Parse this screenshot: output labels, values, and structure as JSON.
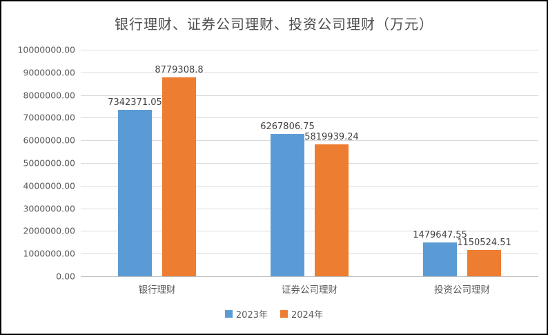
{
  "chart_data": {
    "type": "bar",
    "title": "银行理财、证券公司理财、投资公司理财（万元）",
    "categories": [
      "银行理财",
      "证券公司理财",
      "投资公司理财"
    ],
    "series": [
      {
        "name": "2023年",
        "color": "#5B9BD5",
        "values": [
          7342371.05,
          6267806.75,
          1479647.55
        ],
        "labels": [
          "7342371.05",
          "6267806.75",
          "1479647.55"
        ]
      },
      {
        "name": "2024年",
        "color": "#ED7D31",
        "values": [
          8779308.8,
          5819939.24,
          1150524.51
        ],
        "labels": [
          "8779308.8",
          "5819939.24",
          "1150524.51"
        ]
      }
    ],
    "ylim": [
      0,
      10000000
    ],
    "ytick_step": 1000000,
    "yticks": [
      "10000000.00",
      "9000000.00",
      "8000000.00",
      "7000000.00",
      "6000000.00",
      "5000000.00",
      "4000000.00",
      "3000000.00",
      "2000000.00",
      "1000000.00",
      "0.00"
    ],
    "xlabel": "",
    "ylabel": "",
    "grid": true,
    "legend_position": "bottom"
  },
  "colors": {
    "gridline": "#d9d9d9",
    "axis_line": "#bfbfbf",
    "axis_text": "#595959",
    "data_label_text": "#404040",
    "title_text": "#4d4d4d",
    "background": "#ffffff",
    "border": "#000000"
  }
}
